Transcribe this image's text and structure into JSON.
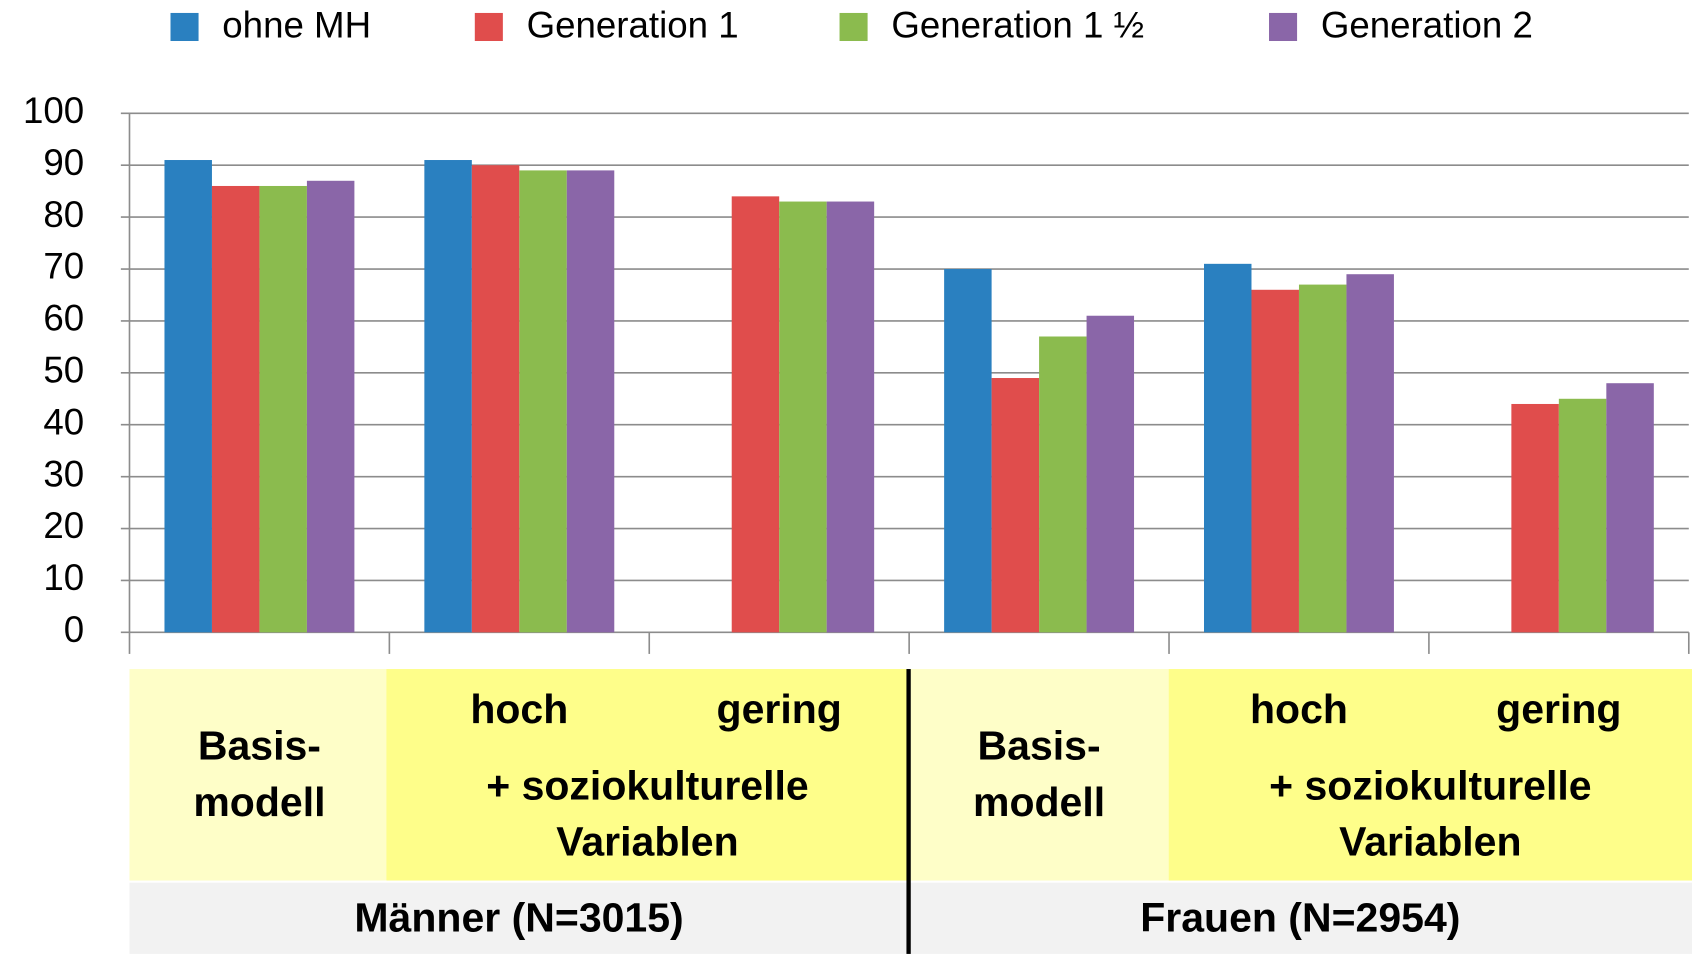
{
  "chart_data": {
    "type": "bar",
    "categories": [
      "Basis-\nmodell",
      "hoch",
      "gering",
      "Basis-\nmodell",
      "hoch",
      "gering"
    ],
    "series": [
      {
        "name": "ohne MH",
        "color": "#2a80c0",
        "values": [
          91,
          91,
          null,
          70,
          71,
          null
        ]
      },
      {
        "name": "Generation 1",
        "color": "#e04d4c",
        "values": [
          86,
          90,
          84,
          49,
          66,
          44
        ]
      },
      {
        "name": "Generation 1 ½",
        "color": "#8bbb4e",
        "values": [
          86,
          89,
          83,
          57,
          67,
          45
        ]
      },
      {
        "name": "Generation 2",
        "color": "#8a66a8",
        "values": [
          87,
          89,
          83,
          61,
          69,
          48
        ]
      }
    ],
    "groups": [
      {
        "label": "Männer (N=3015)",
        "sublabel": "+ soziokulturelle\nVariablen"
      },
      {
        "label": "Frauen (N=2954)",
        "sublabel": "+ soziokulturelle\nVariablen"
      }
    ],
    "ylim": [
      0,
      100
    ],
    "yticks": [
      0,
      10,
      20,
      30,
      40,
      50,
      60,
      70,
      80,
      90,
      100
    ],
    "grid": true
  }
}
